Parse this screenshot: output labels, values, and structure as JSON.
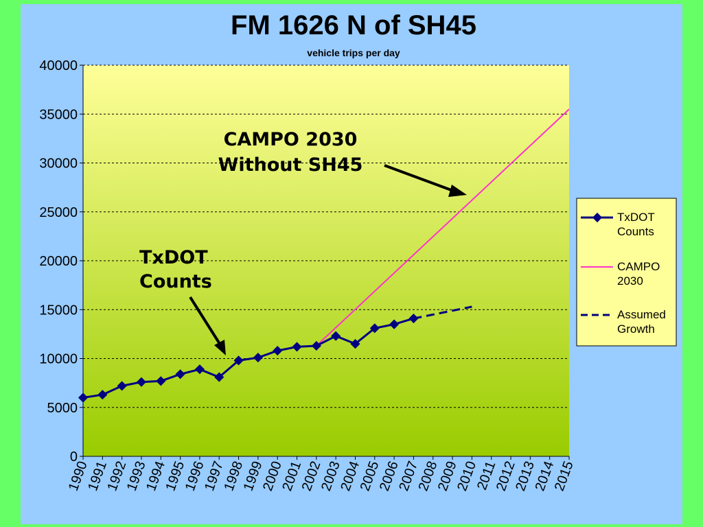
{
  "colors": {
    "background_outer": "#66ff66",
    "background_slide": "#99ccff",
    "plot_top": "#ffff99",
    "plot_bottom": "#99cc00",
    "txdot": "#000080",
    "campo": "#ff33cc",
    "assumed": "#000080",
    "legend_bg": "#ffff99"
  },
  "chart_data": {
    "type": "line",
    "title": "FM 1626 N of SH45",
    "subtitle": "vehicle trips per day",
    "xlabel": "",
    "ylabel": "",
    "ylim": [
      0,
      40000
    ],
    "y_ticks": [
      "0",
      "5000",
      "10000",
      "15000",
      "20000",
      "25000",
      "30000",
      "35000",
      "40000"
    ],
    "categories": [
      "1990",
      "1991",
      "1992",
      "1993",
      "1994",
      "1995",
      "1996",
      "1997",
      "1998",
      "1999",
      "2000",
      "2001",
      "2002",
      "2003",
      "2004",
      "2005",
      "2006",
      "2007",
      "2008",
      "2009",
      "2010",
      "2011",
      "2012",
      "2013",
      "2014",
      "2015"
    ],
    "grid": "horizontal dashed",
    "legend_position": "right",
    "series": [
      {
        "name": "TxDOT Counts",
        "style": "line-diamond",
        "x": [
          "1990",
          "1991",
          "1992",
          "1993",
          "1994",
          "1995",
          "1996",
          "1997",
          "1998",
          "1999",
          "2000",
          "2001",
          "2002",
          "2003",
          "2004",
          "2005",
          "2006",
          "2007"
        ],
        "values": [
          6000,
          6300,
          7200,
          7600,
          7700,
          8400,
          8900,
          8100,
          9800,
          10100,
          10800,
          11200,
          11300,
          12300,
          11500,
          13100,
          13500,
          14100
        ]
      },
      {
        "name": "CAMPO 2030",
        "style": "line",
        "x": [
          "2002",
          "2015"
        ],
        "values": [
          11300,
          35500
        ]
      },
      {
        "name": "Assumed Growth",
        "style": "dashed",
        "x": [
          "2007",
          "2010"
        ],
        "values": [
          14100,
          15300
        ]
      }
    ],
    "legend": [
      [
        "TxDOT",
        "Counts"
      ],
      [
        "CAMPO",
        "2030"
      ],
      [
        "Assumed",
        "Growth"
      ]
    ],
    "annotations": [
      {
        "lines": [
          "CAMPO 2030",
          "Without SH45"
        ]
      },
      {
        "lines": [
          "TxDOT",
          "Counts"
        ]
      }
    ]
  }
}
